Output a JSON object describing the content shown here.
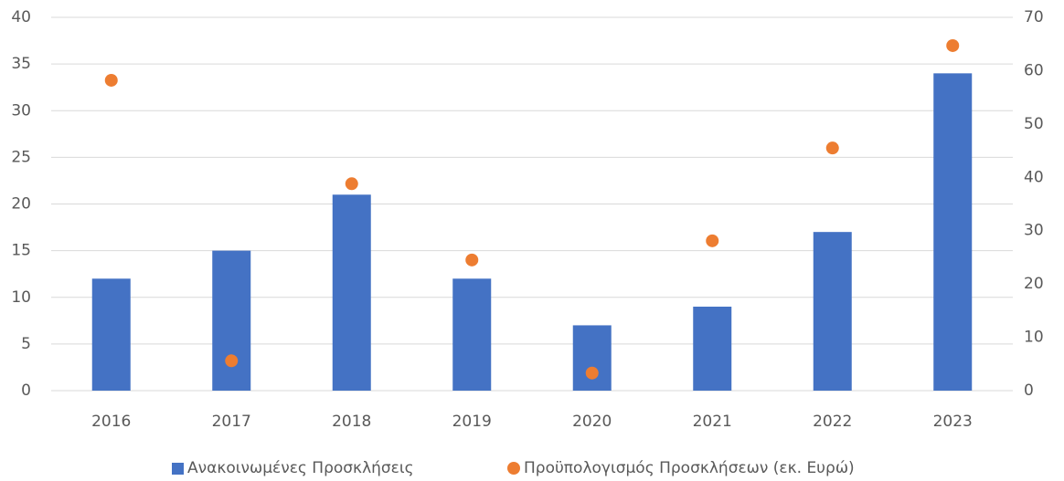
{
  "chart_data": {
    "type": "bar",
    "categories": [
      "2016",
      "2017",
      "2018",
      "2019",
      "2020",
      "2021",
      "2022",
      "2023"
    ],
    "series": [
      {
        "name": "Ανακοινωμένες Προσκλήσεις",
        "type": "bar",
        "color": "#4472c4",
        "values": [
          12,
          15,
          21,
          12,
          7,
          9,
          17,
          34
        ]
      },
      {
        "name": "Προϋπολογισμός Προσκλήσεων (εκ. Ευρώ)",
        "type": "scatter",
        "axis": "y2",
        "color": "#ed7d31",
        "values": [
          58.2,
          5.6,
          38.8,
          24.5,
          3.3,
          28.1,
          45.5,
          64.7
        ]
      }
    ],
    "ylim": [
      0,
      40
    ],
    "yticks": [
      0,
      5,
      10,
      15,
      20,
      25,
      30,
      35,
      40
    ],
    "y2lim": [
      0,
      70
    ],
    "y2ticks": [
      0,
      10,
      20,
      30,
      40,
      50,
      60,
      70
    ],
    "grid": true,
    "legend": "bottom"
  }
}
